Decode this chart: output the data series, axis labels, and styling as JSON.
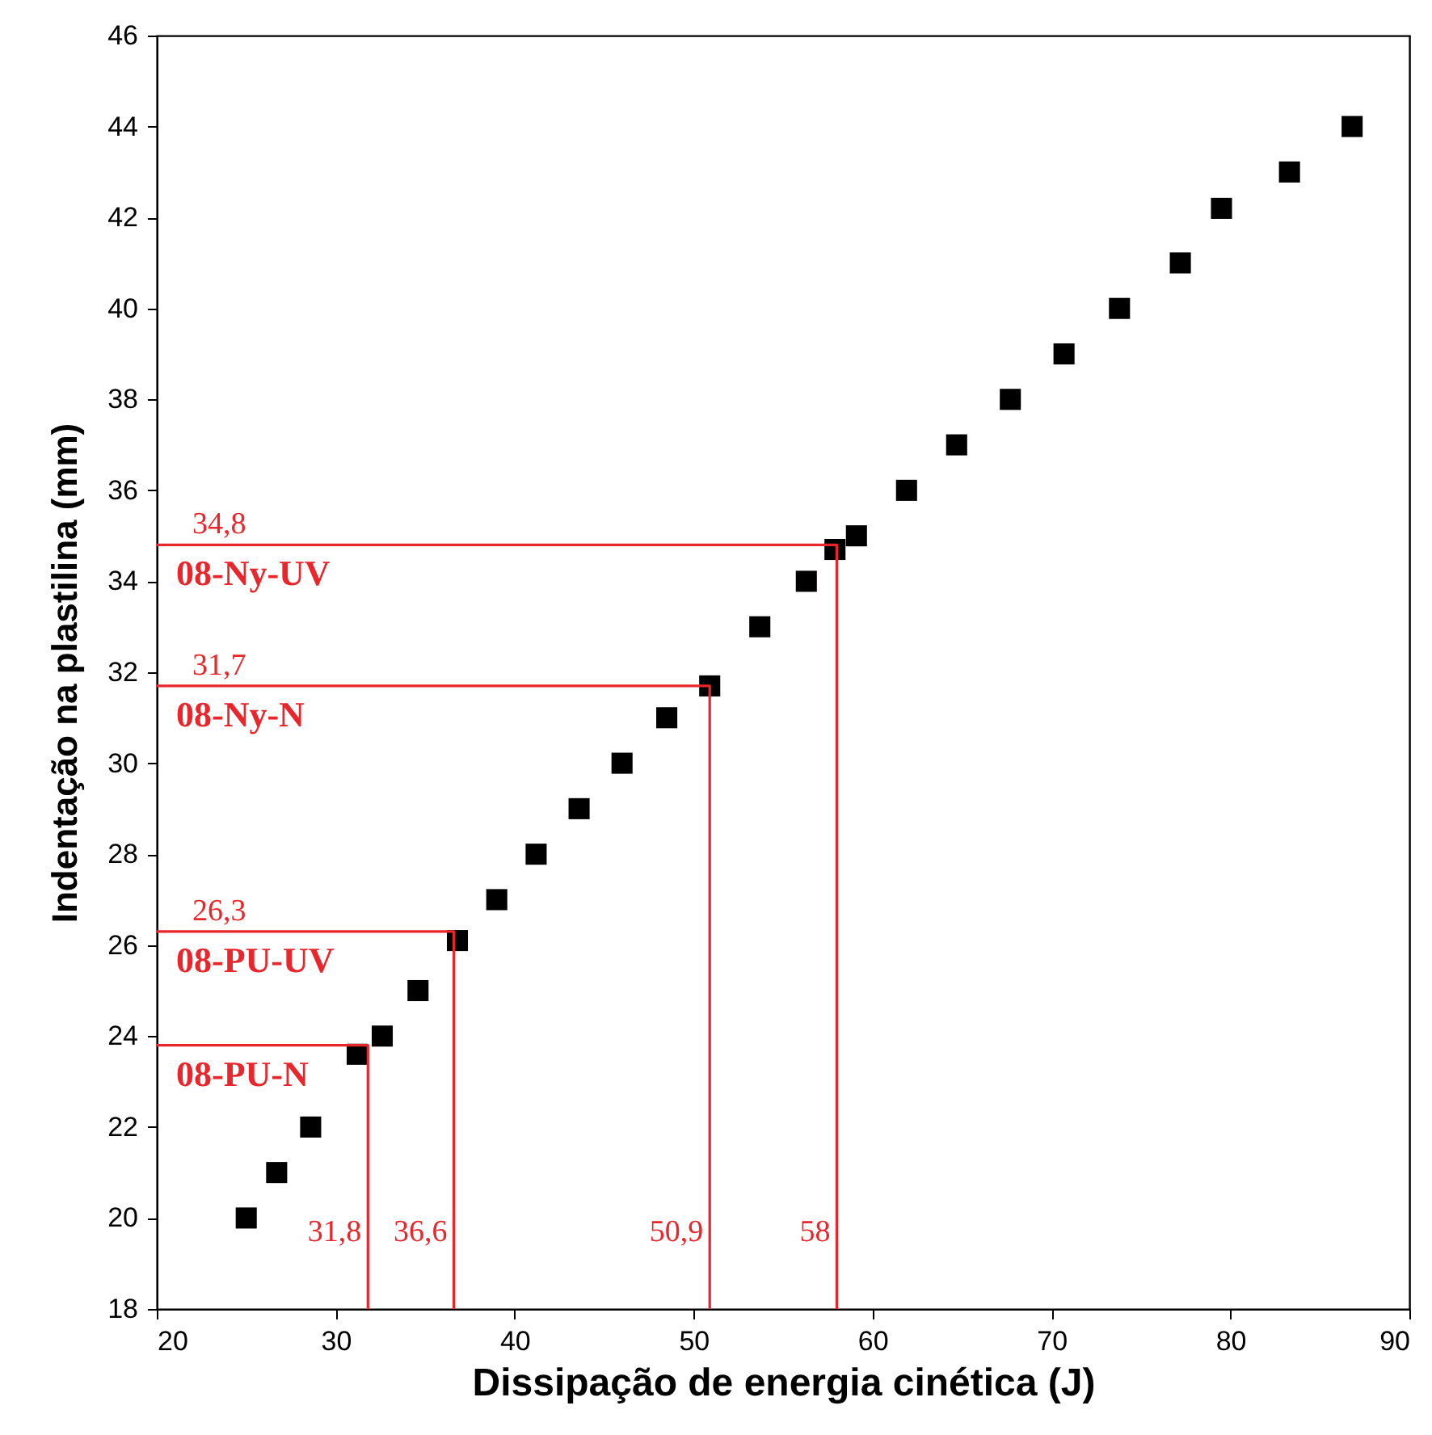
{
  "chart_data": {
    "type": "scatter",
    "xlabel": "Dissipação de energia cinética (J)",
    "ylabel": "Indentação na plastilina (mm)",
    "xlim": [
      20,
      90
    ],
    "ylim": [
      18,
      46
    ],
    "xticks": [
      20,
      30,
      40,
      50,
      60,
      70,
      80,
      90
    ],
    "yticks": [
      18,
      20,
      22,
      24,
      26,
      28,
      30,
      32,
      34,
      36,
      38,
      40,
      42,
      44,
      46
    ],
    "grid": false,
    "series": [
      {
        "type": "scatter",
        "marker": "square",
        "color": "#000000",
        "x": [
          25.0,
          26.7,
          28.6,
          31.2,
          32.6,
          34.6,
          36.8,
          39.0,
          41.2,
          43.6,
          46.0,
          48.5,
          50.9,
          53.7,
          56.3,
          57.9,
          59.1,
          61.9,
          64.7,
          67.7,
          70.7,
          73.8,
          77.2,
          79.5,
          83.3,
          86.8
        ],
        "values": [
          20,
          21,
          22,
          23.6,
          24,
          25,
          26.1,
          27,
          28,
          29,
          30,
          31,
          31.7,
          33,
          34,
          34.7,
          35,
          36,
          37,
          38,
          39,
          40,
          41,
          42.2,
          43,
          44
        ]
      },
      {
        "type": "line",
        "marker": "none",
        "name": "08-PU-N",
        "color": "#e8262b",
        "x": [
          20,
          31.8,
          31.8
        ],
        "values": [
          23.8,
          23.8,
          18
        ]
      },
      {
        "type": "line",
        "marker": "none",
        "name": "08-PU-UV",
        "color": "#e8262b",
        "x": [
          20,
          36.6,
          36.6
        ],
        "values": [
          26.3,
          26.3,
          18
        ]
      },
      {
        "type": "line",
        "marker": "none",
        "name": "08-Ny-N",
        "color": "#e8262b",
        "x": [
          20,
          50.9,
          50.9
        ],
        "values": [
          31.7,
          31.7,
          18
        ]
      },
      {
        "type": "line",
        "marker": "none",
        "name": "08-Ny-UV",
        "color": "#e8262b",
        "x": [
          20,
          58,
          58
        ],
        "values": [
          34.8,
          34.8,
          18
        ]
      }
    ],
    "annotations": [
      {
        "text": "34,8",
        "x": 20,
        "y": 34.8
      },
      {
        "text": "31,7",
        "x": 20,
        "y": 31.7
      },
      {
        "text": "26,3",
        "x": 20,
        "y": 26.3
      },
      {
        "text": "31,8",
        "x": 31.8,
        "y": 18
      },
      {
        "text": "36,6",
        "x": 36.6,
        "y": 18
      },
      {
        "text": "50,9",
        "x": 50.9,
        "y": 18
      },
      {
        "text": "58",
        "x": 58,
        "y": 18
      }
    ]
  }
}
